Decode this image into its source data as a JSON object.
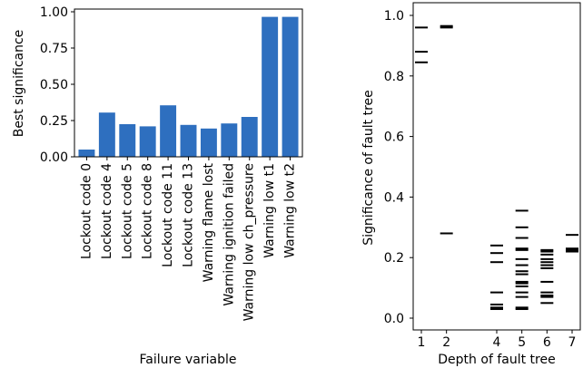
{
  "chart_data": [
    {
      "type": "bar",
      "title": "",
      "xlabel": "Failure variable",
      "ylabel": "Best significance",
      "ylim": [
        0,
        1
      ],
      "yticks": [
        "0.00",
        "0.25",
        "0.50",
        "0.75",
        "1.00"
      ],
      "ytick_values": [
        0,
        0.25,
        0.5,
        0.75,
        1.0
      ],
      "color": "#2e6fbf",
      "categories": [
        "Lockout code 0",
        "Lockout code 4",
        "Lockout code 5",
        "Lockout code 8",
        "Lockout code 11",
        "Lockout code 13",
        "Warning flame lost",
        "Warning ignition failed",
        "Warning low ch_pressure",
        "Warning low t1",
        "Warning low t2"
      ],
      "values": [
        0.05,
        0.305,
        0.225,
        0.21,
        0.355,
        0.22,
        0.195,
        0.23,
        0.275,
        0.965,
        0.965
      ],
      "grid": false,
      "legend": "none"
    },
    {
      "type": "scatter",
      "marker": "horizontal-line",
      "title": "",
      "xlabel": "Depth of fault tree",
      "ylabel": "Significance of fault tree",
      "xlim": [
        1,
        7
      ],
      "ylim": [
        0,
        1
      ],
      "xticks": [
        "1",
        "2",
        "4",
        "5",
        "6",
        "7"
      ],
      "xtick_values": [
        1,
        2,
        4,
        5,
        6,
        7
      ],
      "yticks": [
        "0.0",
        "0.2",
        "0.4",
        "0.6",
        "0.8",
        "1.0"
      ],
      "ytick_values": [
        0,
        0.2,
        0.4,
        0.6,
        0.8,
        1.0
      ],
      "color": "#000000",
      "grid": false,
      "legend": "none",
      "points": [
        {
          "x": 1,
          "y": 0.96
        },
        {
          "x": 1,
          "y": 0.88
        },
        {
          "x": 1,
          "y": 0.845
        },
        {
          "x": 2,
          "y": 0.965
        },
        {
          "x": 2,
          "y": 0.96
        },
        {
          "x": 2,
          "y": 0.28
        },
        {
          "x": 4,
          "y": 0.24
        },
        {
          "x": 4,
          "y": 0.215
        },
        {
          "x": 4,
          "y": 0.185
        },
        {
          "x": 4,
          "y": 0.085
        },
        {
          "x": 4,
          "y": 0.045
        },
        {
          "x": 4,
          "y": 0.035
        },
        {
          "x": 4,
          "y": 0.03
        },
        {
          "x": 5,
          "y": 0.355
        },
        {
          "x": 5,
          "y": 0.3
        },
        {
          "x": 5,
          "y": 0.265
        },
        {
          "x": 5,
          "y": 0.23
        },
        {
          "x": 5,
          "y": 0.225
        },
        {
          "x": 5,
          "y": 0.195
        },
        {
          "x": 5,
          "y": 0.175
        },
        {
          "x": 5,
          "y": 0.155
        },
        {
          "x": 5,
          "y": 0.145
        },
        {
          "x": 5,
          "y": 0.12
        },
        {
          "x": 5,
          "y": 0.115
        },
        {
          "x": 5,
          "y": 0.105
        },
        {
          "x": 5,
          "y": 0.085
        },
        {
          "x": 5,
          "y": 0.07
        },
        {
          "x": 5,
          "y": 0.035
        },
        {
          "x": 5,
          "y": 0.03
        },
        {
          "x": 6,
          "y": 0.225
        },
        {
          "x": 6,
          "y": 0.22
        },
        {
          "x": 6,
          "y": 0.21
        },
        {
          "x": 6,
          "y": 0.195
        },
        {
          "x": 6,
          "y": 0.185
        },
        {
          "x": 6,
          "y": 0.175
        },
        {
          "x": 6,
          "y": 0.165
        },
        {
          "x": 6,
          "y": 0.12
        },
        {
          "x": 6,
          "y": 0.085
        },
        {
          "x": 6,
          "y": 0.075
        },
        {
          "x": 6,
          "y": 0.07
        },
        {
          "x": 6,
          "y": 0.05
        },
        {
          "x": 7,
          "y": 0.275
        },
        {
          "x": 7,
          "y": 0.23
        },
        {
          "x": 7,
          "y": 0.225
        },
        {
          "x": 7,
          "y": 0.22
        }
      ]
    }
  ]
}
